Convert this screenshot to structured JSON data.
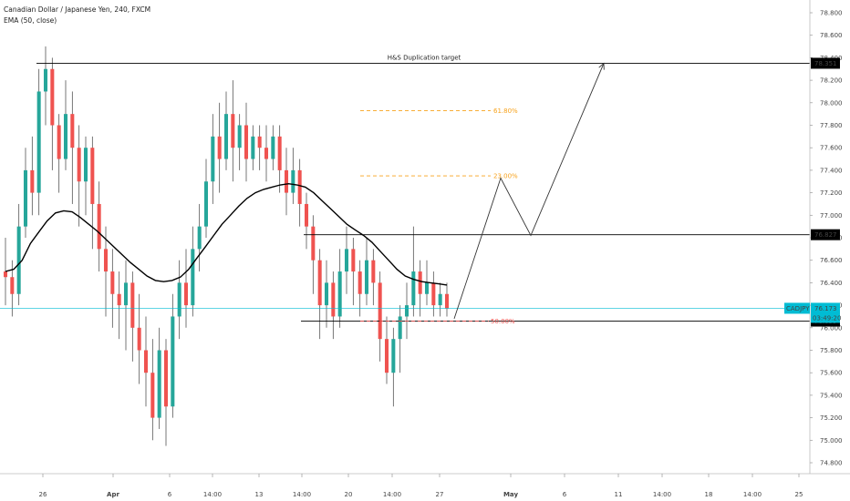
{
  "legend": {
    "title": "Canadian Dollar / Japanese Yen, 240, FXCM",
    "indicator": "EMA (50, close)"
  },
  "colors": {
    "up": "#26a69a",
    "down": "#ef5350",
    "wick": "#555555",
    "ema": "#000000",
    "fib": "#f7a21b",
    "fib50": "#ef5350",
    "price_line": "#00bcd4",
    "hline": "#000000"
  },
  "annotations": {
    "hs_target": "H&S Duplication target",
    "fib_618": "61.80%",
    "fib_382": "23.00%",
    "fib_50": "50.00%"
  },
  "price_labels": {
    "target": "78.351",
    "resistance": "76.827",
    "symbol": "CADJPY",
    "last": "76.173",
    "countdown": "03:49:20",
    "support": "76.059"
  },
  "chart_data": {
    "type": "candlestick",
    "y_axis_ticks": [
      "78.800",
      "78.600",
      "78.400",
      "78.200",
      "78.000",
      "77.800",
      "77.600",
      "77.400",
      "77.200",
      "77.000",
      "76.800",
      "76.600",
      "76.400",
      "76.200",
      "76.000",
      "75.800",
      "75.600",
      "75.400",
      "75.200",
      "75.000",
      "74.800"
    ],
    "ylim": [
      74.7,
      78.95
    ],
    "x_axis_ticks": [
      "26",
      "Apr",
      "6",
      "14:00",
      "13",
      "14:00",
      "20",
      "14:00",
      "27",
      "May",
      "6",
      "11",
      "14:00",
      "18",
      "14:00",
      "25"
    ],
    "levels": {
      "target": 78.351,
      "resistance": 76.827,
      "support": 76.059,
      "last": 76.173
    },
    "fib_levels": {
      "61.80%": 77.93,
      "23.00%": 77.35,
      "50.00%": 76.06
    },
    "projection_path": [
      [
        0.0,
        76.08
      ],
      [
        0.25,
        77.33
      ],
      [
        0.4,
        76.82
      ],
      [
        0.7,
        78.35
      ]
    ],
    "candles": [
      [
        76.5,
        76.45,
        76.8,
        76.2
      ],
      [
        76.45,
        76.3,
        76.6,
        76.1
      ],
      [
        76.3,
        76.9,
        77.1,
        76.2
      ],
      [
        76.9,
        77.4,
        77.6,
        76.8
      ],
      [
        77.4,
        77.2,
        77.7,
        77.0
      ],
      [
        77.2,
        78.1,
        78.3,
        77.0
      ],
      [
        78.1,
        78.3,
        78.5,
        77.8
      ],
      [
        78.3,
        77.8,
        78.4,
        77.4
      ],
      [
        77.8,
        77.5,
        77.9,
        77.2
      ],
      [
        77.5,
        77.9,
        78.2,
        77.4
      ],
      [
        77.9,
        77.6,
        78.1,
        77.1
      ],
      [
        77.6,
        77.3,
        77.8,
        76.9
      ],
      [
        77.3,
        77.6,
        77.7,
        77.0
      ],
      [
        77.6,
        77.1,
        77.7,
        76.7
      ],
      [
        77.1,
        76.7,
        77.3,
        76.5
      ],
      [
        76.7,
        76.5,
        76.9,
        76.1
      ],
      [
        76.5,
        76.3,
        76.7,
        76.0
      ],
      [
        76.3,
        76.2,
        76.5,
        75.9
      ],
      [
        76.2,
        76.4,
        76.6,
        75.8
      ],
      [
        76.4,
        76.0,
        76.5,
        75.7
      ],
      [
        76.0,
        75.8,
        76.3,
        75.5
      ],
      [
        75.8,
        75.6,
        76.1,
        75.3
      ],
      [
        75.6,
        75.2,
        75.9,
        75.0
      ],
      [
        75.2,
        75.8,
        76.0,
        75.1
      ],
      [
        75.8,
        75.3,
        75.9,
        74.95
      ],
      [
        75.3,
        76.1,
        76.3,
        75.2
      ],
      [
        76.1,
        76.4,
        76.6,
        75.9
      ],
      [
        76.4,
        76.2,
        76.7,
        76.0
      ],
      [
        76.2,
        76.7,
        76.9,
        76.1
      ],
      [
        76.7,
        76.9,
        77.1,
        76.5
      ],
      [
        76.9,
        77.3,
        77.5,
        76.8
      ],
      [
        77.3,
        77.7,
        77.9,
        77.1
      ],
      [
        77.7,
        77.5,
        78.0,
        77.2
      ],
      [
        77.5,
        77.9,
        78.1,
        77.4
      ],
      [
        77.9,
        77.6,
        78.2,
        77.3
      ],
      [
        77.6,
        77.8,
        77.9,
        77.4
      ],
      [
        77.8,
        77.5,
        78.0,
        77.3
      ],
      [
        77.5,
        77.7,
        77.8,
        77.4
      ],
      [
        77.7,
        77.6,
        77.8,
        77.4
      ],
      [
        77.6,
        77.5,
        77.8,
        77.3
      ],
      [
        77.5,
        77.7,
        77.8,
        77.4
      ],
      [
        77.7,
        77.4,
        77.8,
        77.2
      ],
      [
        77.4,
        77.2,
        77.6,
        77.0
      ],
      [
        77.2,
        77.4,
        77.6,
        77.1
      ],
      [
        77.4,
        77.1,
        77.5,
        76.9
      ],
      [
        77.1,
        76.9,
        77.2,
        76.7
      ],
      [
        76.9,
        76.6,
        77.0,
        76.3
      ],
      [
        76.6,
        76.2,
        76.7,
        75.9
      ],
      [
        76.2,
        76.4,
        76.6,
        76.0
      ],
      [
        76.4,
        76.1,
        76.5,
        75.9
      ],
      [
        76.1,
        76.5,
        76.7,
        76.0
      ],
      [
        76.5,
        76.7,
        76.9,
        76.3
      ],
      [
        76.7,
        76.5,
        76.8,
        76.2
      ],
      [
        76.5,
        76.3,
        76.6,
        76.1
      ],
      [
        76.3,
        76.6,
        76.8,
        76.2
      ],
      [
        76.6,
        76.4,
        76.7,
        76.2
      ],
      [
        76.4,
        75.9,
        76.5,
        75.7
      ],
      [
        75.9,
        75.6,
        76.1,
        75.5
      ],
      [
        75.6,
        75.9,
        76.0,
        75.3
      ],
      [
        75.9,
        76.1,
        76.2,
        75.6
      ],
      [
        76.1,
        76.2,
        76.4,
        75.9
      ],
      [
        76.2,
        76.5,
        76.9,
        76.1
      ],
      [
        76.5,
        76.3,
        76.6,
        76.1
      ],
      [
        76.3,
        76.4,
        76.6,
        76.2
      ],
      [
        76.4,
        76.2,
        76.5,
        76.1
      ],
      [
        76.2,
        76.3,
        76.4,
        76.1
      ],
      [
        76.3,
        76.17,
        76.4,
        76.1
      ]
    ],
    "ema": [
      76.5,
      76.52,
      76.6,
      76.75,
      76.85,
      76.95,
      77.02,
      77.04,
      77.03,
      76.98,
      76.92,
      76.86,
      76.79,
      76.72,
      76.65,
      76.58,
      76.52,
      76.46,
      76.42,
      76.41,
      76.42,
      76.45,
      76.52,
      76.62,
      76.72,
      76.82,
      76.92,
      77.0,
      77.08,
      77.15,
      77.2,
      77.23,
      77.25,
      77.27,
      77.28,
      77.27,
      77.25,
      77.2,
      77.13,
      77.06,
      76.99,
      76.92,
      76.87,
      76.82,
      76.76,
      76.68,
      76.6,
      76.52,
      76.46,
      76.43,
      76.41,
      76.4,
      76.39,
      76.38
    ]
  }
}
